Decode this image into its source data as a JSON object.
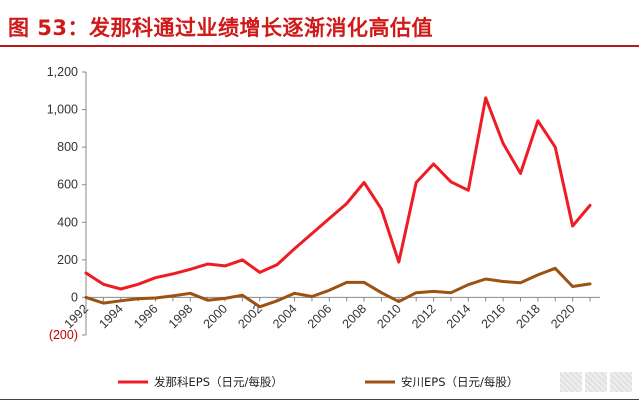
{
  "figure": {
    "title": "图 53：发那科通过业绩增长逐渐消化高估值",
    "watermark_icon": "blurred-watermark-icon"
  },
  "chart_data": {
    "type": "line",
    "title": "",
    "xlabel": "",
    "ylabel": "",
    "ylim": [
      -200,
      1200
    ],
    "yticks": [
      -200,
      0,
      200,
      400,
      600,
      800,
      1000,
      1200
    ],
    "ytick_labels": [
      "(200)",
      "0",
      "200",
      "400",
      "600",
      "800",
      "1,000",
      "1,200"
    ],
    "xlim": [
      1992,
      2021
    ],
    "xticks": [
      "1992",
      "1994",
      "1996",
      "1998",
      "2000",
      "2002",
      "2004",
      "2006",
      "2008",
      "2010",
      "2012",
      "2014",
      "2016",
      "2018",
      "2020"
    ],
    "grid": false,
    "legend_position": "bottom",
    "x": [
      1992,
      1993,
      1994,
      1995,
      1996,
      1997,
      1998,
      1999,
      2000,
      2001,
      2002,
      2003,
      2004,
      2005,
      2006,
      2007,
      2008,
      2009,
      2010,
      2011,
      2012,
      2013,
      2014,
      2015,
      2016,
      2017,
      2018,
      2019,
      2020,
      2021
    ],
    "series": [
      {
        "name": "发那科EPS（日元/每股）",
        "color": "#ee1c25",
        "values": [
          130,
          70,
          45,
          70,
          105,
          125,
          150,
          178,
          168,
          200,
          133,
          175,
          260,
          340,
          420,
          500,
          612,
          470,
          188,
          612,
          710,
          615,
          570,
          1062,
          820,
          660,
          940,
          800,
          380,
          490
        ]
      },
      {
        "name": "安川EPS（日元/每股）",
        "color": "#9b5213",
        "values": [
          0,
          -30,
          -18,
          -7,
          -3,
          8,
          22,
          -15,
          -5,
          12,
          -50,
          -18,
          22,
          5,
          38,
          80,
          80,
          25,
          -22,
          25,
          32,
          25,
          68,
          98,
          85,
          78,
          120,
          155,
          58,
          72
        ]
      }
    ]
  }
}
